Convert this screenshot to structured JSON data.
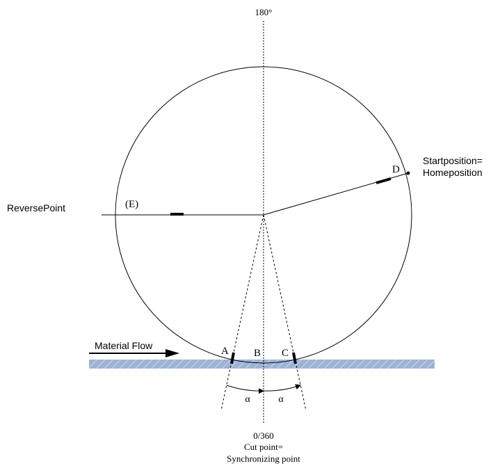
{
  "labels": {
    "top_angle": "180°",
    "reverse_point": "ReversePoint",
    "point_e": "(E)",
    "point_d": "D",
    "start_position_line1": "Startposition=",
    "start_position_line2": "Homeposition",
    "material_flow": "Material Flow",
    "point_a": "A",
    "point_b": "B",
    "point_c": "C",
    "alpha_left": "α",
    "alpha_right": "α",
    "bottom_angle": "0/360",
    "cut_point": "Cut point=",
    "sync_point": "Synchronizing point"
  },
  "colors": {
    "line": "#000000",
    "material_fill": "#9db3d6",
    "material_hatch": "#c9d6ea"
  }
}
